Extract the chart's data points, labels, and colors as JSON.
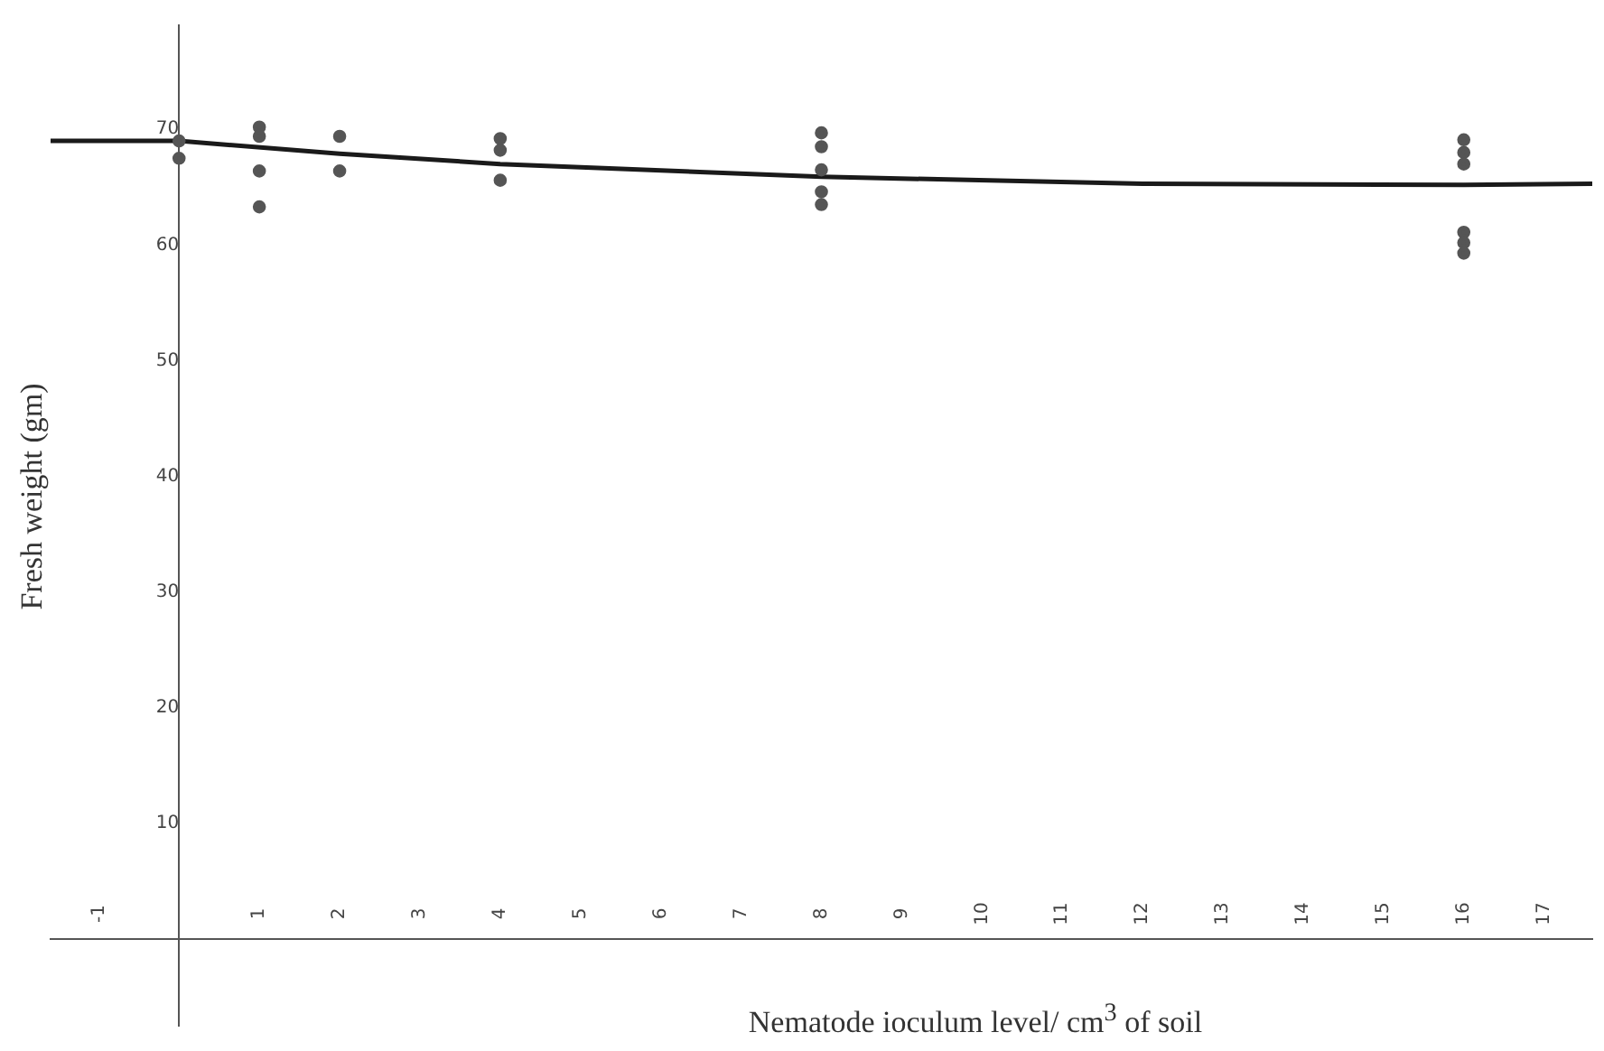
{
  "chart_data": {
    "type": "scatter",
    "xlabel": "Nematode ioculum level/ cm$^{3}$ of soil",
    "ylabel": "Fresh weight (gm)",
    "xlim": [
      -1.6,
      17.6
    ],
    "ylim": [
      -7.5,
      79
    ],
    "xticks": [
      -1,
      1,
      2,
      3,
      4,
      5,
      6,
      7,
      8,
      9,
      10,
      11,
      12,
      13,
      14,
      15,
      16,
      17
    ],
    "yticks": [
      10,
      20,
      30,
      40,
      50,
      60,
      70
    ],
    "grid": false,
    "legend": false,
    "series": [
      {
        "type": "scatter",
        "marker": "circle",
        "color": "#555555",
        "x": [
          0,
          0,
          1,
          1,
          1,
          1,
          2,
          2,
          4,
          4,
          4,
          8,
          8,
          8,
          8,
          8,
          16,
          16,
          16,
          16,
          16,
          16
        ],
        "values": [
          69,
          67.5,
          70.2,
          69.4,
          66.4,
          63.3,
          69.4,
          66.4,
          69.2,
          68.2,
          65.6,
          69.7,
          68.5,
          66.5,
          64.6,
          63.5,
          69.1,
          68.0,
          67.0,
          61.1,
          60.2,
          59.3
        ]
      },
      {
        "type": "line",
        "marker": "none",
        "color": "#1a1a1a",
        "x": [
          -1.6,
          0,
          2,
          4,
          8,
          12,
          16,
          17.6
        ],
        "values": [
          69,
          69,
          67.9,
          67.0,
          65.9,
          65.3,
          65.2,
          65.3
        ]
      }
    ]
  }
}
